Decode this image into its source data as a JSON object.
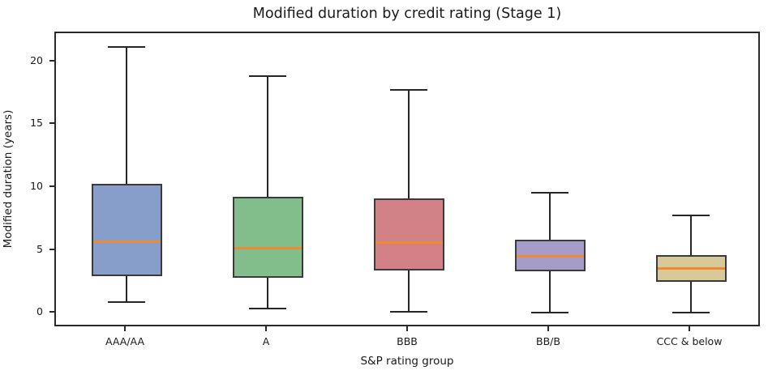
{
  "chart_data": {
    "type": "box",
    "title": "Modified duration by credit rating (Stage 1)",
    "xlabel": "S&P rating group",
    "ylabel": "Modified duration (years)",
    "categories": [
      "AAA/AA",
      "A",
      "BBB",
      "BB/B",
      "CCC & below"
    ],
    "boxes": [
      {
        "label": "AAA/AA",
        "whisker_low": 0.9,
        "q1": 3.0,
        "median": 5.7,
        "q3": 10.35,
        "whisker_high": 21.2,
        "fill": "#869EC9"
      },
      {
        "label": "A",
        "whisker_low": 0.4,
        "q1": 2.85,
        "median": 5.2,
        "q3": 9.3,
        "whisker_high": 18.9,
        "fill": "#82BE8C"
      },
      {
        "label": "BBB",
        "whisker_low": 0.15,
        "q1": 3.4,
        "median": 5.65,
        "q3": 9.15,
        "whisker_high": 17.8,
        "fill": "#D28187"
      },
      {
        "label": "BB/B",
        "whisker_low": 0.05,
        "q1": 3.35,
        "median": 4.55,
        "q3": 5.85,
        "whisker_high": 9.6,
        "fill": "#A59CC8"
      },
      {
        "label": "CCC & below",
        "whisker_low": 0.05,
        "q1": 2.5,
        "median": 3.6,
        "q3": 4.65,
        "whisker_high": 7.8,
        "fill": "#D8C998"
      }
    ],
    "outliers": [],
    "yticks": [
      0,
      5,
      10,
      15,
      20
    ],
    "ylim": [
      -1.16,
      22.32
    ],
    "xlim": [
      0.5,
      5.5
    ],
    "box_width_units": 0.5,
    "cap_width_units": 0.26,
    "median_color": "#EE8B30",
    "line_color": "#262626",
    "edge_color": "#3B3B3B",
    "grid": false,
    "legend": null
  }
}
